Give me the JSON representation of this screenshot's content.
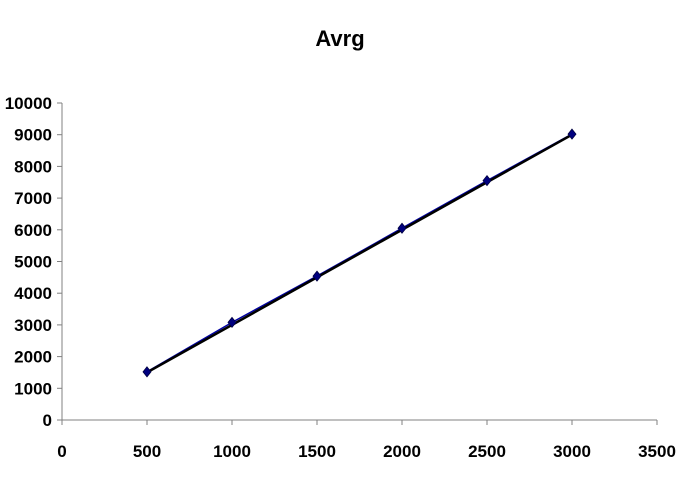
{
  "chart_data": {
    "type": "scatter",
    "title": "Avrg",
    "xlabel": "",
    "ylabel": "",
    "xlim": [
      0,
      3500
    ],
    "ylim": [
      0,
      10000
    ],
    "xticks": [
      0,
      500,
      1000,
      1500,
      2000,
      2500,
      3000,
      3500
    ],
    "yticks": [
      0,
      1000,
      2000,
      3000,
      4000,
      5000,
      6000,
      7000,
      8000,
      9000,
      10000
    ],
    "grid": false,
    "legend": "none",
    "series": [
      {
        "x": [
          500,
          1000,
          1500,
          2000,
          2500,
          3000
        ],
        "y": [
          1520,
          3080,
          4540,
          6050,
          7550,
          9020
        ],
        "marker": "diamond",
        "color": "#00007f",
        "line_color": "#0000a0"
      }
    ],
    "trendline": {
      "type": "linear",
      "x": [
        500,
        3000
      ],
      "y": [
        1500,
        9000
      ],
      "color": "#000000"
    }
  }
}
